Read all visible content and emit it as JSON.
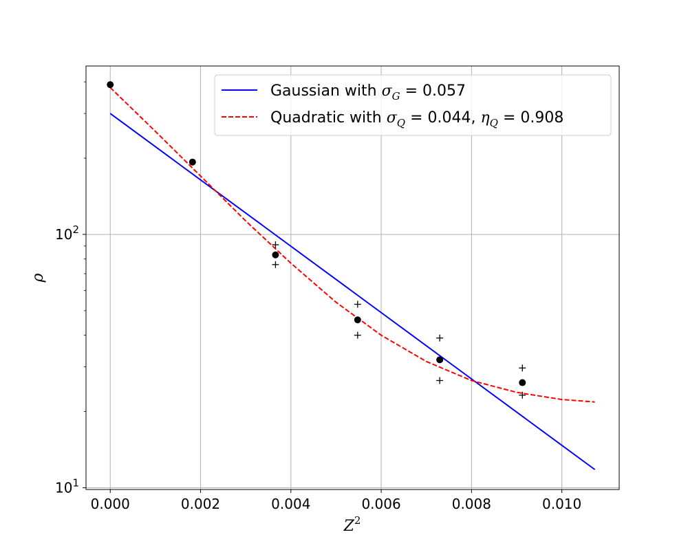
{
  "chart_data": {
    "type": "scatter",
    "xlabel": "Z",
    "xlabel_sup": "2",
    "ylabel": "ρ",
    "xlim": [
      -0.000537,
      0.01127
    ],
    "ylim": [
      9.844,
      462
    ],
    "yscale": "log",
    "grid": true,
    "legend_position": "top-right",
    "xticks": [
      {
        "value": 0.0,
        "label": "0.000"
      },
      {
        "value": 0.002,
        "label": "0.002"
      },
      {
        "value": 0.004,
        "label": "0.004"
      },
      {
        "value": 0.006,
        "label": "0.006"
      },
      {
        "value": 0.008,
        "label": "0.008"
      },
      {
        "value": 0.01,
        "label": "0.010"
      }
    ],
    "yticks": [
      {
        "value": 10,
        "base": "10",
        "exp": "1"
      },
      {
        "value": 100,
        "base": "10",
        "exp": "2"
      }
    ],
    "points": {
      "color": "#000000",
      "x": [
        0.0,
        0.001822,
        0.003659,
        0.005478,
        0.007296,
        0.009126
      ],
      "y": [
        390,
        193,
        83,
        46,
        32,
        26
      ]
    },
    "error_markers": {
      "x": [
        0.003659,
        0.003659,
        0.005478,
        0.005478,
        0.007296,
        0.007296,
        0.009126,
        0.009126
      ],
      "y": [
        91,
        76,
        53,
        40,
        39,
        26.5,
        29.7,
        23.2
      ]
    },
    "series": [
      {
        "name_prefix": "Gaussian with ",
        "name_math": [
          {
            "sym": "σ",
            "sub": "G",
            "val": " = 0.057"
          }
        ],
        "color": "#0000ff",
        "style": "solid",
        "x": [
          0.0,
          0.01073
        ],
        "y": [
          300,
          11.8
        ]
      },
      {
        "name_prefix": "Quadratic with ",
        "name_math": [
          {
            "sym": "σ",
            "sub": "Q",
            "val": " = 0.044, "
          },
          {
            "sym": "η",
            "sub": "Q",
            "val": " = 0.908"
          }
        ],
        "color": "#ff0000",
        "style": "dashed",
        "x": [
          0.0,
          0.001,
          0.002,
          0.003,
          0.004,
          0.005,
          0.006,
          0.007,
          0.008,
          0.009,
          0.01,
          0.01073
        ],
        "y": [
          380,
          255,
          170,
          113,
          77,
          54,
          40,
          31.5,
          26.5,
          23.8,
          22.3,
          21.8
        ]
      }
    ]
  }
}
